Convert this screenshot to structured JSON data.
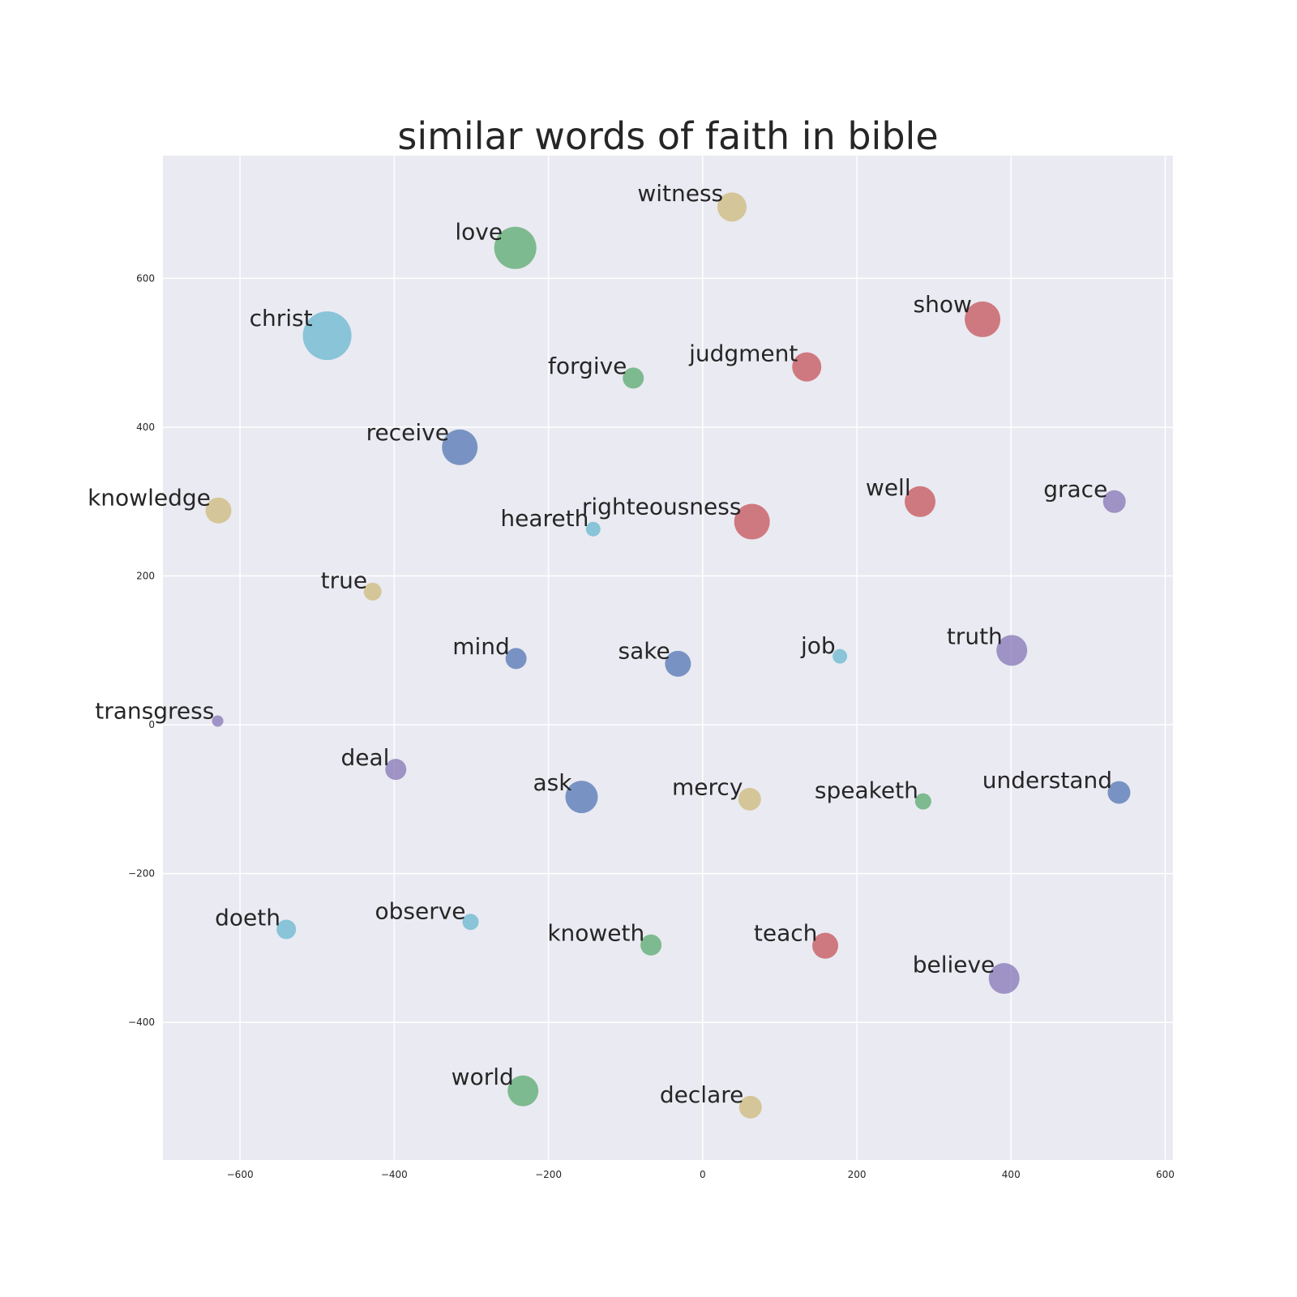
{
  "chart_data": {
    "type": "scatter",
    "title": "similar words of faith in bible",
    "xlabel": "",
    "ylabel": "",
    "xlim": [
      -700,
      610
    ],
    "ylim": [
      -585,
      765
    ],
    "xticks": [
      -600,
      -400,
      -200,
      0,
      200,
      400,
      600
    ],
    "yticks": [
      -400,
      -200,
      0,
      200,
      400,
      600
    ],
    "grid": true,
    "palette": {
      "blue": "#4c72b0",
      "green": "#55a868",
      "red": "#c44e52",
      "purple": "#8172b2",
      "gold": "#ccb974",
      "cyan": "#64b5cd"
    },
    "points": [
      {
        "word": "witness",
        "x": 38,
        "y": 696,
        "size": 18,
        "color": "gold"
      },
      {
        "word": "love",
        "x": -243,
        "y": 641,
        "size": 26,
        "color": "green"
      },
      {
        "word": "show",
        "x": 363,
        "y": 545,
        "size": 22,
        "color": "red"
      },
      {
        "word": "christ",
        "x": -487,
        "y": 523,
        "size": 30,
        "color": "cyan"
      },
      {
        "word": "forgive",
        "x": -90,
        "y": 466,
        "size": 13,
        "color": "green"
      },
      {
        "word": "judgment",
        "x": 135,
        "y": 481,
        "size": 18,
        "color": "red"
      },
      {
        "word": "receive",
        "x": -315,
        "y": 373,
        "size": 22,
        "color": "blue"
      },
      {
        "word": "knowledge",
        "x": -628,
        "y": 288,
        "size": 16,
        "color": "gold"
      },
      {
        "word": "heareth",
        "x": -142,
        "y": 263,
        "size": 9,
        "color": "cyan"
      },
      {
        "word": "righteousness",
        "x": 64,
        "y": 273,
        "size": 22,
        "color": "red"
      },
      {
        "word": "well",
        "x": 282,
        "y": 300,
        "size": 19,
        "color": "red"
      },
      {
        "word": "grace",
        "x": 534,
        "y": 300,
        "size": 14,
        "color": "purple"
      },
      {
        "word": "true",
        "x": -428,
        "y": 179,
        "size": 11,
        "color": "gold"
      },
      {
        "word": "mind",
        "x": -242,
        "y": 89,
        "size": 13,
        "color": "blue"
      },
      {
        "word": "sake",
        "x": -32,
        "y": 82,
        "size": 16,
        "color": "blue"
      },
      {
        "word": "job",
        "x": 178,
        "y": 92,
        "size": 9,
        "color": "cyan"
      },
      {
        "word": "truth",
        "x": 401,
        "y": 100,
        "size": 19,
        "color": "purple"
      },
      {
        "word": "transgress",
        "x": -629,
        "y": 5,
        "size": 7,
        "color": "purple"
      },
      {
        "word": "deal",
        "x": -398,
        "y": -60,
        "size": 13,
        "color": "purple"
      },
      {
        "word": "ask",
        "x": -157,
        "y": -97,
        "size": 20,
        "color": "blue"
      },
      {
        "word": "mercy",
        "x": 61,
        "y": -100,
        "size": 14,
        "color": "gold"
      },
      {
        "word": "speaketh",
        "x": 286,
        "y": -103,
        "size": 10,
        "color": "green"
      },
      {
        "word": "understand",
        "x": 540,
        "y": -91,
        "size": 14,
        "color": "blue"
      },
      {
        "word": "doeth",
        "x": -540,
        "y": -275,
        "size": 12,
        "color": "cyan"
      },
      {
        "word": "observe",
        "x": -301,
        "y": -265,
        "size": 10,
        "color": "cyan"
      },
      {
        "word": "knoweth",
        "x": -67,
        "y": -296,
        "size": 13,
        "color": "green"
      },
      {
        "word": "teach",
        "x": 159,
        "y": -297,
        "size": 16,
        "color": "red"
      },
      {
        "word": "believe",
        "x": 391,
        "y": -341,
        "size": 19,
        "color": "purple"
      },
      {
        "word": "world",
        "x": -233,
        "y": -492,
        "size": 19,
        "color": "green"
      },
      {
        "word": "declare",
        "x": 62,
        "y": -514,
        "size": 14,
        "color": "gold"
      }
    ]
  }
}
